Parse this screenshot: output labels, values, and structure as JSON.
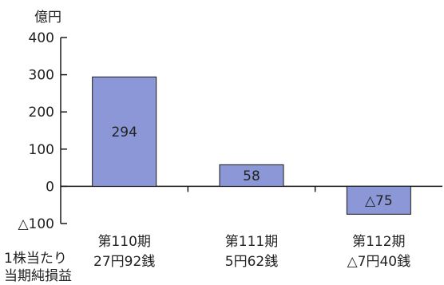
{
  "chart_data": {
    "type": "bar",
    "ylabel": "億円",
    "ylim": [
      -100,
      400
    ],
    "yticks": [
      400,
      300,
      200,
      100,
      0,
      -100
    ],
    "ytick_labels": [
      "400",
      "300",
      "200",
      "100",
      "0",
      "△100"
    ],
    "grid": false,
    "legend": "none",
    "categories": [
      "第110期",
      "第111期",
      "第112期"
    ],
    "values": [
      294,
      58,
      -75
    ],
    "data_labels": [
      "294",
      "58",
      "△75"
    ],
    "secondary_row_caption": [
      "1株当たり",
      "当期純損益"
    ],
    "secondary_row_values": [
      "27円92銭",
      "5円62銭",
      "△7円40銭"
    ],
    "colors": {
      "bar_fill": "#8b97d6",
      "bar_stroke": "#1a1a1a",
      "axis": "#1a1a1a",
      "text": "#222222"
    }
  }
}
